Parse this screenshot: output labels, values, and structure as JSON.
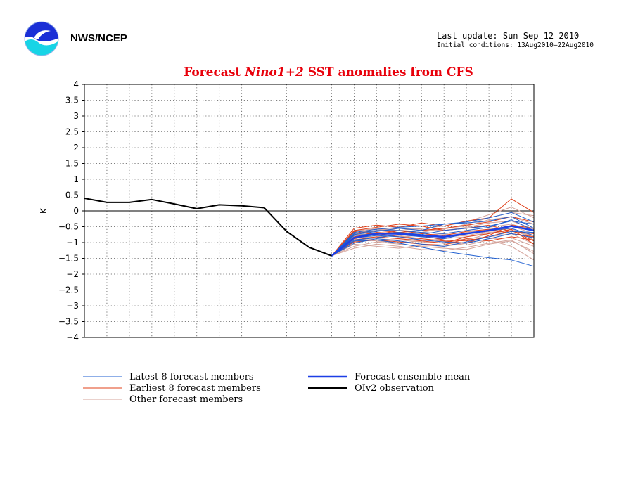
{
  "header": {
    "org": "NWS/NCEP",
    "last_update": "Last update: Sun Sep 12 2010",
    "initial_conditions": "Initial conditions: 13Aug2010–22Aug2010"
  },
  "colors": {
    "title": "#e8000b",
    "latest": "#1f5fd0",
    "earliest": "#e0401a",
    "other": "#d4a39a",
    "mean": "#1c3fe6",
    "obs": "#000000"
  },
  "chart_data": {
    "type": "line",
    "title_parts": [
      "Forecast ",
      "Nino1+2",
      " SST anomalies from CFS"
    ],
    "ylabel": "K",
    "ylim": [
      -4,
      4
    ],
    "yticks": [
      -4,
      -3.5,
      -3,
      -2.5,
      -2,
      -1.5,
      -1,
      -0.5,
      0,
      0.5,
      1,
      1.5,
      2,
      2.5,
      3,
      3.5,
      4
    ],
    "n_steps": 20,
    "grid": true,
    "observation": {
      "name": "OIv2 observation",
      "x": [
        0,
        1,
        2,
        3,
        4,
        5,
        6,
        7,
        8,
        9,
        10,
        11
      ],
      "y": [
        0.4,
        0.27,
        0.27,
        0.36,
        0.22,
        0.07,
        0.19,
        0.16,
        0.1,
        -0.65,
        -1.15,
        -1.42
      ]
    },
    "ensemble_mean": {
      "name": "Forecast ensemble mean",
      "x": [
        11,
        12,
        13,
        14,
        15,
        16,
        17,
        18,
        19,
        20
      ],
      "y": [
        -1.42,
        -0.85,
        -0.72,
        -0.72,
        -0.78,
        -0.82,
        -0.72,
        -0.62,
        -0.48,
        -0.62
      ]
    },
    "latest_members": {
      "name": "Latest 8 forecast members",
      "x": [
        11,
        12,
        13,
        14,
        15,
        16,
        17,
        18,
        19,
        20
      ],
      "members": [
        [
          -1.42,
          -0.75,
          -0.65,
          -0.55,
          -0.62,
          -0.42,
          -0.35,
          -0.22,
          -0.05,
          -0.35
        ],
        [
          -1.42,
          -0.95,
          -0.92,
          -1.02,
          -1.15,
          -1.28,
          -1.38,
          -1.48,
          -1.55,
          -1.75
        ],
        [
          -1.42,
          -0.85,
          -0.78,
          -0.82,
          -0.92,
          -0.98,
          -1.02,
          -0.88,
          -0.72,
          -0.85
        ],
        [
          -1.42,
          -0.68,
          -0.58,
          -0.52,
          -0.48,
          -0.42,
          -0.38,
          -0.32,
          -0.18,
          -0.55
        ],
        [
          -1.42,
          -1.02,
          -0.88,
          -0.95,
          -1.05,
          -1.12,
          -0.98,
          -0.82,
          -0.65,
          -0.68
        ],
        [
          -1.42,
          -0.78,
          -0.72,
          -0.68,
          -0.75,
          -0.62,
          -0.55,
          -0.48,
          -0.32,
          -0.42
        ],
        [
          -1.42,
          -0.92,
          -0.85,
          -0.75,
          -0.82,
          -0.88,
          -0.72,
          -0.62,
          -0.55,
          -0.78
        ],
        [
          -1.42,
          -0.72,
          -0.62,
          -0.62,
          -0.68,
          -0.72,
          -0.62,
          -0.52,
          -0.28,
          -0.62
        ]
      ]
    },
    "earliest_members": {
      "name": "Earliest 8 forecast members",
      "x": [
        11,
        12,
        13,
        14,
        15,
        16,
        17,
        18,
        19,
        20
      ],
      "members": [
        [
          -1.42,
          -0.55,
          -0.45,
          -0.52,
          -0.38,
          -0.48,
          -0.32,
          -0.22,
          0.38,
          -0.05
        ],
        [
          -1.42,
          -0.82,
          -0.68,
          -0.72,
          -0.78,
          -0.92,
          -0.95,
          -0.82,
          -0.62,
          -0.95
        ],
        [
          -1.42,
          -0.62,
          -0.52,
          -0.42,
          -0.48,
          -0.62,
          -0.55,
          -0.45,
          -0.65,
          -0.72
        ],
        [
          -1.42,
          -0.92,
          -0.82,
          -0.88,
          -0.95,
          -1.02,
          -0.82,
          -0.72,
          -0.58,
          -1.05
        ],
        [
          -1.42,
          -0.72,
          -0.62,
          -0.68,
          -0.62,
          -0.55,
          -0.45,
          -0.35,
          -0.18,
          -0.35
        ],
        [
          -1.42,
          -0.98,
          -0.92,
          -0.98,
          -1.05,
          -1.08,
          -0.88,
          -0.95,
          -0.82,
          -0.92
        ],
        [
          -1.42,
          -0.65,
          -0.75,
          -0.62,
          -0.72,
          -0.78,
          -0.65,
          -0.58,
          -0.72,
          -0.82
        ],
        [
          -1.42,
          -0.88,
          -0.72,
          -0.82,
          -0.88,
          -0.95,
          -1.02,
          -0.78,
          -0.45,
          -0.55
        ]
      ]
    },
    "other_members": {
      "name": "Other forecast members",
      "x": [
        11,
        12,
        13,
        14,
        15,
        16,
        17,
        18,
        19,
        20
      ],
      "members": [
        [
          -1.42,
          -0.62,
          -0.58,
          -0.62,
          -0.55,
          -0.48,
          -0.35,
          -0.12,
          0.12,
          -0.22
        ],
        [
          -1.42,
          -1.12,
          -0.98,
          -1.05,
          -1.12,
          -1.18,
          -1.22,
          -1.05,
          -0.95,
          -1.28
        ],
        [
          -1.42,
          -0.78,
          -0.68,
          -0.72,
          -0.82,
          -0.75,
          -0.68,
          -0.58,
          -0.48,
          -0.72
        ],
        [
          -1.42,
          -0.95,
          -0.88,
          -0.92,
          -0.98,
          -1.02,
          -1.08,
          -0.92,
          -1.12,
          -1.55
        ],
        [
          -1.42,
          -0.72,
          -0.65,
          -0.55,
          -0.62,
          -0.58,
          -0.42,
          -0.22,
          -0.05,
          -0.15
        ],
        [
          -1.42,
          -0.85,
          -0.82,
          -0.88,
          -0.92,
          -0.98,
          -0.88,
          -0.82,
          -0.72,
          -1.05
        ],
        [
          -1.42,
          -1.05,
          -1.12,
          -1.18,
          -1.08,
          -1.12,
          -1.02,
          -0.88,
          -0.85,
          -1.12
        ],
        [
          -1.42,
          -0.68,
          -0.62,
          -0.55,
          -0.58,
          -0.62,
          -0.52,
          -0.38,
          -0.32,
          -0.58
        ],
        [
          -1.42,
          -0.92,
          -0.82,
          -0.78,
          -0.88,
          -0.95,
          -0.92,
          -0.72,
          -0.62,
          -0.82
        ],
        [
          -1.42,
          -0.82,
          -0.75,
          -0.82,
          -0.78,
          -0.72,
          -0.62,
          -0.52,
          -0.42,
          -0.62
        ],
        [
          -1.42,
          -1.18,
          -1.05,
          -1.12,
          -1.22,
          -1.25,
          -1.15,
          -1.02,
          -0.92,
          -1.35
        ],
        [
          -1.42,
          -0.75,
          -0.72,
          -0.68,
          -0.72,
          -0.82,
          -0.78,
          -0.65,
          -0.55,
          -0.92
        ],
        [
          -1.42,
          -0.88,
          -0.95,
          -1.02,
          -0.95,
          -0.88,
          -0.82,
          -0.68,
          -0.62,
          -0.78
        ],
        [
          -1.42,
          -0.65,
          -0.55,
          -0.62,
          -0.68,
          -0.55,
          -0.48,
          -0.28,
          -0.18,
          -0.42
        ]
      ]
    },
    "legend": {
      "placement": "bottom",
      "items": [
        {
          "key": "latest",
          "label": "Latest 8 forecast members"
        },
        {
          "key": "earliest",
          "label": "Earliest 8 forecast members"
        },
        {
          "key": "other",
          "label": "Other forecast members"
        },
        {
          "key": "mean",
          "label": "Forecast ensemble mean"
        },
        {
          "key": "obs",
          "label": "OIv2 observation"
        }
      ]
    }
  }
}
